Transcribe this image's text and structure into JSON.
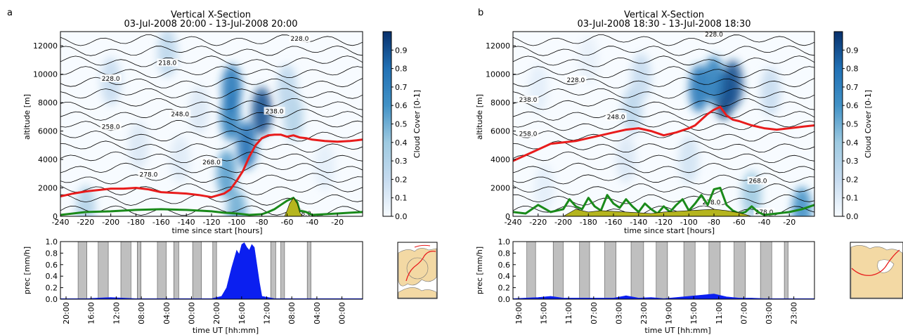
{
  "colors": {
    "precip_line": "#e81c1c",
    "boundary_layer": "#1a8a1a",
    "orography": "#b5b51e",
    "precip_bar": "#0b1ff0",
    "night_band": "#bfbfbf",
    "cmap_low": "#f7fbff",
    "cmap_high": "#08306b",
    "map_land": "#f3d9a4",
    "map_sea": "#ffffff"
  },
  "panels": [
    {
      "letter": "a",
      "title": "Vertical X-Section",
      "subtitle": "03-Jul-2008 20:00 - 13-Jul-2008 20:00",
      "xsection": {
        "xlabel": "time since start [hours]",
        "ylabel": "altitude [m]",
        "xticks": [
          "-240",
          "-220",
          "-200",
          "-180",
          "-160",
          "-140",
          "-120",
          "-100",
          "-80",
          "-60",
          "-40",
          "-20"
        ],
        "yticks": [
          "0",
          "2000",
          "4000",
          "6000",
          "8000",
          "10000",
          "12000"
        ],
        "contour_labels": [
          "228.0",
          "218.0",
          "228.0",
          "248.0",
          "238.0",
          "258.0",
          "268.0",
          "278.0",
          "278.0"
        ]
      },
      "colorbar": {
        "label": "Cloud Cover [0-1]",
        "ticks": [
          "0.0",
          "0.1",
          "0.2",
          "0.3",
          "0.4",
          "0.5",
          "0.6",
          "0.7",
          "0.8",
          "0.9"
        ]
      },
      "precip": {
        "ylabel": "prec [mm/h]",
        "xlabel": "time UT [hh:mm]",
        "yticks": [
          "0.0",
          "0.2",
          "0.4",
          "0.6",
          "0.8",
          "1.0"
        ],
        "xticks": [
          "20:00",
          "16:00",
          "12:00",
          "08:00",
          "04:00",
          "00:00",
          "20:00",
          "16:00",
          "12:00",
          "08:00",
          "04:00",
          "00:00"
        ]
      }
    },
    {
      "letter": "b",
      "title": "Vertical X-Section",
      "subtitle": "03-Jul-2008 18:30 - 13-Jul-2008 18:30",
      "xsection": {
        "xlabel": "time since start [hours]",
        "ylabel": "altitude [m]",
        "xticks": [
          "-240",
          "-220",
          "-200",
          "-180",
          "-160",
          "-140",
          "-120",
          "-100",
          "-80",
          "-60",
          "-40",
          "-20"
        ],
        "yticks": [
          "0",
          "2000",
          "4000",
          "6000",
          "8000",
          "10000",
          "12000"
        ],
        "contour_labels": [
          "228.0",
          "228.0",
          "238.0",
          "248.0",
          "258.0",
          "268.0",
          "278.0",
          "278.0"
        ]
      },
      "colorbar": {
        "label": "Cloud Cover [0-1]",
        "ticks": [
          "0.0",
          "0.1",
          "0.2",
          "0.3",
          "0.4",
          "0.5",
          "0.6",
          "0.7",
          "0.8",
          "0.9"
        ]
      },
      "precip": {
        "ylabel": "prec [mm/h]",
        "xlabel": "time UT [hh:mm]",
        "yticks": [
          "0.0",
          "0.2",
          "0.4",
          "0.6",
          "0.8",
          "1.0"
        ],
        "xticks": [
          "19:00",
          "15:00",
          "11:00",
          "07:00",
          "03:00",
          "23:00",
          "19:00",
          "15:00",
          "11:00",
          "07:00",
          "03:00",
          "23:00"
        ]
      }
    }
  ],
  "chart_data": [
    {
      "panel": "a",
      "type": "heatmap",
      "title": "Vertical X-Section",
      "subtitle": "03-Jul-2008 20:00 - 13-Jul-2008 20:00",
      "xlabel": "time since start [hours]",
      "ylabel": "altitude [m]",
      "xlim": [
        -240,
        0
      ],
      "ylim": [
        0,
        13000
      ],
      "grid": false,
      "colorbar": {
        "label": "Cloud Cover [0-1]",
        "range": [
          0,
          1
        ]
      },
      "cloud_cores": [
        {
          "x": -105,
          "y": 7000,
          "value": 0.7
        },
        {
          "x": -92,
          "y": 5000,
          "value": 0.8
        },
        {
          "x": -80,
          "y": 7400,
          "value": 0.9
        },
        {
          "x": -108,
          "y": 3000,
          "value": 0.55
        },
        {
          "x": -104,
          "y": 9000,
          "value": 0.75
        },
        {
          "x": -155,
          "y": 11500,
          "value": 0.25
        },
        {
          "x": -200,
          "y": 9500,
          "value": 0.2
        },
        {
          "x": -178,
          "y": 5000,
          "value": 0.12
        },
        {
          "x": -55,
          "y": 7000,
          "value": 0.3
        },
        {
          "x": -60,
          "y": 9000,
          "value": 0.25
        },
        {
          "x": -130,
          "y": 7500,
          "value": 0.12
        },
        {
          "x": -145,
          "y": 4000,
          "value": 0.1
        },
        {
          "x": -30,
          "y": 3500,
          "value": 0.08
        },
        {
          "x": -220,
          "y": 500,
          "value": 0.3
        },
        {
          "x": -100,
          "y": 200,
          "value": 0.5
        }
      ],
      "series": [
        {
          "name": "red line",
          "x": [
            -240,
            -230,
            -220,
            -210,
            -200,
            -190,
            -180,
            -170,
            -160,
            -150,
            -140,
            -130,
            -120,
            -110,
            -105,
            -100,
            -95,
            -90,
            -85,
            -80,
            -75,
            -70,
            -65,
            -60,
            -55,
            -50,
            -45,
            -40,
            -30,
            -20,
            -10,
            0
          ],
          "y": [
            1400,
            1600,
            1750,
            1850,
            1950,
            1950,
            2000,
            1900,
            1700,
            1650,
            1600,
            1500,
            1350,
            1600,
            1900,
            2500,
            3200,
            4200,
            5000,
            5500,
            5700,
            5750,
            5750,
            5600,
            5700,
            5550,
            5500,
            5400,
            5300,
            5250,
            5300,
            5400
          ]
        },
        {
          "name": "green line",
          "x": [
            -240,
            -230,
            -220,
            -200,
            -180,
            -160,
            -140,
            -120,
            -110,
            -100,
            -90,
            -80,
            -75,
            -70,
            -65,
            -60,
            -55,
            -52,
            -50,
            -45,
            -40,
            -30,
            -20,
            -10,
            0
          ],
          "y": [
            100,
            200,
            300,
            350,
            450,
            500,
            450,
            350,
            250,
            200,
            100,
            150,
            300,
            500,
            800,
            1100,
            1300,
            1000,
            400,
            300,
            100,
            150,
            200,
            250,
            300
          ]
        },
        {
          "name": "orography",
          "x": [
            -62,
            -60,
            -58,
            -55,
            -52,
            -50,
            -48
          ],
          "y": [
            0,
            400,
            900,
            1300,
            900,
            300,
            0
          ]
        }
      ],
      "contour_labels": [
        {
          "x": -155,
          "y": 10800,
          "value": 218.0
        },
        {
          "x": -200,
          "y": 9700,
          "value": 228.0
        },
        {
          "x": -50,
          "y": 12500,
          "value": 228.0
        },
        {
          "x": -145,
          "y": 7200,
          "value": 248.0
        },
        {
          "x": -70,
          "y": 7400,
          "value": 238.0
        },
        {
          "x": -200,
          "y": 6300,
          "value": 258.0
        },
        {
          "x": -120,
          "y": 3800,
          "value": 268.0
        },
        {
          "x": -170,
          "y": 2950,
          "value": 278.0
        },
        {
          "x": -48,
          "y": 200,
          "value": 278.0
        }
      ]
    },
    {
      "panel": "a",
      "type": "bar",
      "ylabel": "prec [mm/h]",
      "xlabel": "time UT [hh:mm]",
      "ylim": [
        0,
        1.0
      ],
      "night_bands_hours": [
        [
          -226,
          -219
        ],
        [
          -210,
          -202
        ],
        [
          -192,
          -184
        ],
        [
          -179,
          -176
        ],
        [
          -163,
          -156
        ],
        [
          -150,
          -146
        ],
        [
          -135,
          -128
        ],
        [
          -119,
          -116
        ],
        [
          -73,
          -69
        ],
        [
          -65,
          -62
        ],
        [
          -44,
          -41
        ]
      ],
      "series": [
        {
          "name": "precipitation",
          "x": [
            -240,
            -220,
            -200,
            -190,
            -180,
            -160,
            -140,
            -120,
            -112,
            -108,
            -104,
            -102,
            -100,
            -98,
            -96,
            -94,
            -92,
            -90,
            -88,
            -86,
            -84,
            -82,
            -80,
            -70,
            -60,
            -40,
            -20,
            0
          ],
          "y": [
            0.01,
            0.01,
            0.03,
            0.02,
            0.01,
            0.01,
            0.01,
            0.01,
            0.05,
            0.2,
            0.55,
            0.7,
            0.85,
            0.78,
            0.95,
            0.98,
            0.9,
            0.85,
            0.95,
            0.9,
            0.6,
            0.3,
            0.05,
            0.01,
            0.01,
            0.01,
            0.01,
            0.01
          ]
        }
      ]
    },
    {
      "panel": "b",
      "type": "heatmap",
      "title": "Vertical X-Section",
      "subtitle": "03-Jul-2008 18:30 - 13-Jul-2008 18:30",
      "xlabel": "time since start [hours]",
      "ylabel": "altitude [m]",
      "xlim": [
        -240,
        0
      ],
      "ylim": [
        0,
        13000
      ],
      "grid": false,
      "colorbar": {
        "label": "Cloud Cover [0-1]",
        "range": [
          0,
          1
        ]
      },
      "cloud_cores": [
        {
          "x": -92,
          "y": 9000,
          "value": 0.75
        },
        {
          "x": -72,
          "y": 8500,
          "value": 0.95
        },
        {
          "x": -65,
          "y": 9300,
          "value": 0.9
        },
        {
          "x": -80,
          "y": 9600,
          "value": 0.7
        },
        {
          "x": -145,
          "y": 7500,
          "value": 0.25
        },
        {
          "x": -138,
          "y": 9800,
          "value": 0.2
        },
        {
          "x": -150,
          "y": 4000,
          "value": 0.12
        },
        {
          "x": -100,
          "y": 4000,
          "value": 0.15
        },
        {
          "x": -35,
          "y": 8800,
          "value": 0.2
        },
        {
          "x": -215,
          "y": 2000,
          "value": 0.08
        },
        {
          "x": -50,
          "y": 1500,
          "value": 0.4
        },
        {
          "x": -10,
          "y": 400,
          "value": 0.6
        },
        {
          "x": -220,
          "y": 9000,
          "value": 0.08
        },
        {
          "x": -180,
          "y": 11000,
          "value": 0.06
        }
      ],
      "series": [
        {
          "name": "red line",
          "x": [
            -240,
            -230,
            -220,
            -210,
            -200,
            -190,
            -180,
            -170,
            -160,
            -150,
            -140,
            -130,
            -120,
            -110,
            -100,
            -95,
            -90,
            -85,
            -80,
            -75,
            -70,
            -65,
            -60,
            -50,
            -40,
            -30,
            -20,
            -10,
            0
          ],
          "y": [
            3900,
            4300,
            4700,
            5100,
            5200,
            5300,
            5500,
            5700,
            5900,
            6100,
            6200,
            6000,
            5700,
            5900,
            6200,
            6400,
            6800,
            7200,
            7500,
            7700,
            7100,
            6800,
            6700,
            6400,
            6200,
            6100,
            6200,
            6300,
            6400
          ]
        },
        {
          "name": "green line",
          "x": [
            -240,
            -230,
            -220,
            -210,
            -200,
            -195,
            -190,
            -185,
            -180,
            -175,
            -170,
            -165,
            -160,
            -155,
            -150,
            -145,
            -140,
            -135,
            -130,
            -125,
            -120,
            -115,
            -110,
            -105,
            -100,
            -95,
            -90,
            -85,
            -80,
            -75,
            -70,
            -65,
            -60,
            -55,
            -50,
            -45,
            -40,
            -30,
            -20,
            -10,
            0
          ],
          "y": [
            300,
            200,
            800,
            300,
            500,
            1200,
            700,
            500,
            1300,
            700,
            400,
            1500,
            900,
            600,
            1200,
            700,
            300,
            900,
            500,
            200,
            700,
            300,
            800,
            1200,
            400,
            900,
            1500,
            800,
            1900,
            2000,
            800,
            400,
            200,
            300,
            700,
            300,
            100,
            200,
            300,
            500,
            800
          ]
        },
        {
          "name": "orography",
          "x": [
            -200,
            -190,
            -180,
            -170,
            -160,
            -150,
            -140,
            -130,
            -120,
            -110,
            -100,
            -90,
            -80,
            -70,
            -60,
            -50
          ],
          "y": [
            0,
            500,
            300,
            400,
            350,
            300,
            250,
            200,
            300,
            350,
            400,
            450,
            500,
            400,
            250,
            0
          ]
        }
      ],
      "contour_labels": [
        {
          "x": -190,
          "y": 9600,
          "value": 228.0
        },
        {
          "x": -80,
          "y": 12800,
          "value": 228.0
        },
        {
          "x": -228,
          "y": 8200,
          "value": 238.0
        },
        {
          "x": -158,
          "y": 7000,
          "value": 248.0
        },
        {
          "x": -228,
          "y": 5800,
          "value": 258.0
        },
        {
          "x": -45,
          "y": 2500,
          "value": 268.0
        },
        {
          "x": -82,
          "y": 1000,
          "value": 278.0
        },
        {
          "x": -40,
          "y": 300,
          "value": 278.0
        }
      ]
    },
    {
      "panel": "b",
      "type": "bar",
      "ylabel": "prec [mm/h]",
      "xlabel": "time UT [hh:mm]",
      "ylim": [
        0,
        1.0
      ],
      "night_bands_hours": [
        [
          -229,
          -222
        ],
        [
          -208,
          -200
        ],
        [
          -187,
          -179
        ],
        [
          -167,
          -158
        ],
        [
          -146,
          -136
        ],
        [
          -126,
          -117
        ],
        [
          -104,
          -95
        ],
        [
          -84,
          -75
        ],
        [
          -64,
          -55
        ],
        [
          -43,
          -34
        ],
        [
          -24,
          -21
        ]
      ],
      "series": [
        {
          "name": "precipitation",
          "x": [
            -240,
            -220,
            -210,
            -200,
            -180,
            -160,
            -150,
            -140,
            -130,
            -120,
            -100,
            -80,
            -70,
            -60,
            -50,
            -40,
            -20,
            0
          ],
          "y": [
            0.01,
            0.03,
            0.05,
            0.02,
            0.02,
            0.02,
            0.06,
            0.02,
            0.03,
            0.01,
            0.05,
            0.09,
            0.04,
            0.02,
            0.02,
            0.01,
            0.01,
            0.01
          ]
        }
      ]
    }
  ]
}
